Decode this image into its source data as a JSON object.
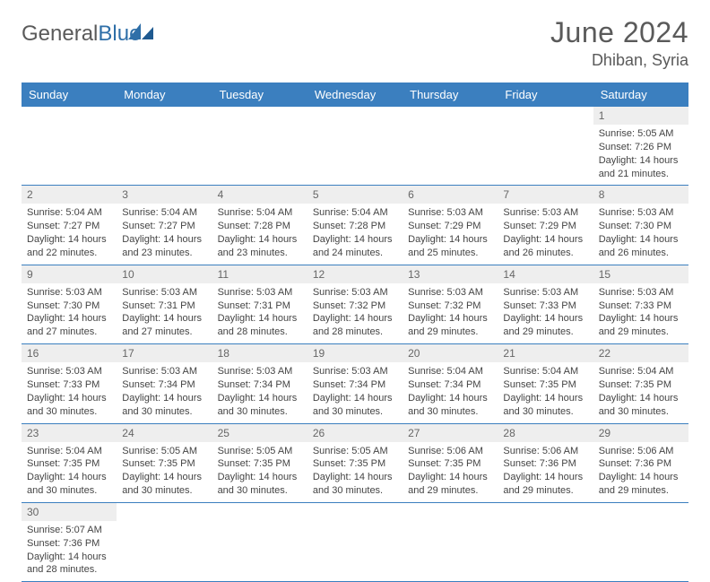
{
  "brand": {
    "part1": "General",
    "part2": "Blue"
  },
  "title": "June 2024",
  "location": "Dhiban, Syria",
  "colors": {
    "header_bg": "#3b7fbf",
    "header_text": "#ffffff",
    "daynum_bg": "#eeeeee",
    "daynum_text": "#666666",
    "cell_text": "#444444",
    "rule": "#3b7fbf",
    "title_text": "#5a5a5a",
    "brand_gray": "#5a5a5a",
    "brand_blue": "#2f6fa8"
  },
  "typography": {
    "title_fontsize": 32,
    "location_fontsize": 18,
    "dayhead_fontsize": 13,
    "daynum_fontsize": 12,
    "cell_fontsize": 11
  },
  "weekdays": [
    "Sunday",
    "Monday",
    "Tuesday",
    "Wednesday",
    "Thursday",
    "Friday",
    "Saturday"
  ],
  "weeks": [
    [
      null,
      null,
      null,
      null,
      null,
      null,
      {
        "n": "1",
        "sr": "Sunrise: 5:05 AM",
        "ss": "Sunset: 7:26 PM",
        "dl": "Daylight: 14 hours and 21 minutes."
      }
    ],
    [
      {
        "n": "2",
        "sr": "Sunrise: 5:04 AM",
        "ss": "Sunset: 7:27 PM",
        "dl": "Daylight: 14 hours and 22 minutes."
      },
      {
        "n": "3",
        "sr": "Sunrise: 5:04 AM",
        "ss": "Sunset: 7:27 PM",
        "dl": "Daylight: 14 hours and 23 minutes."
      },
      {
        "n": "4",
        "sr": "Sunrise: 5:04 AM",
        "ss": "Sunset: 7:28 PM",
        "dl": "Daylight: 14 hours and 23 minutes."
      },
      {
        "n": "5",
        "sr": "Sunrise: 5:04 AM",
        "ss": "Sunset: 7:28 PM",
        "dl": "Daylight: 14 hours and 24 minutes."
      },
      {
        "n": "6",
        "sr": "Sunrise: 5:03 AM",
        "ss": "Sunset: 7:29 PM",
        "dl": "Daylight: 14 hours and 25 minutes."
      },
      {
        "n": "7",
        "sr": "Sunrise: 5:03 AM",
        "ss": "Sunset: 7:29 PM",
        "dl": "Daylight: 14 hours and 26 minutes."
      },
      {
        "n": "8",
        "sr": "Sunrise: 5:03 AM",
        "ss": "Sunset: 7:30 PM",
        "dl": "Daylight: 14 hours and 26 minutes."
      }
    ],
    [
      {
        "n": "9",
        "sr": "Sunrise: 5:03 AM",
        "ss": "Sunset: 7:30 PM",
        "dl": "Daylight: 14 hours and 27 minutes."
      },
      {
        "n": "10",
        "sr": "Sunrise: 5:03 AM",
        "ss": "Sunset: 7:31 PM",
        "dl": "Daylight: 14 hours and 27 minutes."
      },
      {
        "n": "11",
        "sr": "Sunrise: 5:03 AM",
        "ss": "Sunset: 7:31 PM",
        "dl": "Daylight: 14 hours and 28 minutes."
      },
      {
        "n": "12",
        "sr": "Sunrise: 5:03 AM",
        "ss": "Sunset: 7:32 PM",
        "dl": "Daylight: 14 hours and 28 minutes."
      },
      {
        "n": "13",
        "sr": "Sunrise: 5:03 AM",
        "ss": "Sunset: 7:32 PM",
        "dl": "Daylight: 14 hours and 29 minutes."
      },
      {
        "n": "14",
        "sr": "Sunrise: 5:03 AM",
        "ss": "Sunset: 7:33 PM",
        "dl": "Daylight: 14 hours and 29 minutes."
      },
      {
        "n": "15",
        "sr": "Sunrise: 5:03 AM",
        "ss": "Sunset: 7:33 PM",
        "dl": "Daylight: 14 hours and 29 minutes."
      }
    ],
    [
      {
        "n": "16",
        "sr": "Sunrise: 5:03 AM",
        "ss": "Sunset: 7:33 PM",
        "dl": "Daylight: 14 hours and 30 minutes."
      },
      {
        "n": "17",
        "sr": "Sunrise: 5:03 AM",
        "ss": "Sunset: 7:34 PM",
        "dl": "Daylight: 14 hours and 30 minutes."
      },
      {
        "n": "18",
        "sr": "Sunrise: 5:03 AM",
        "ss": "Sunset: 7:34 PM",
        "dl": "Daylight: 14 hours and 30 minutes."
      },
      {
        "n": "19",
        "sr": "Sunrise: 5:03 AM",
        "ss": "Sunset: 7:34 PM",
        "dl": "Daylight: 14 hours and 30 minutes."
      },
      {
        "n": "20",
        "sr": "Sunrise: 5:04 AM",
        "ss": "Sunset: 7:34 PM",
        "dl": "Daylight: 14 hours and 30 minutes."
      },
      {
        "n": "21",
        "sr": "Sunrise: 5:04 AM",
        "ss": "Sunset: 7:35 PM",
        "dl": "Daylight: 14 hours and 30 minutes."
      },
      {
        "n": "22",
        "sr": "Sunrise: 5:04 AM",
        "ss": "Sunset: 7:35 PM",
        "dl": "Daylight: 14 hours and 30 minutes."
      }
    ],
    [
      {
        "n": "23",
        "sr": "Sunrise: 5:04 AM",
        "ss": "Sunset: 7:35 PM",
        "dl": "Daylight: 14 hours and 30 minutes."
      },
      {
        "n": "24",
        "sr": "Sunrise: 5:05 AM",
        "ss": "Sunset: 7:35 PM",
        "dl": "Daylight: 14 hours and 30 minutes."
      },
      {
        "n": "25",
        "sr": "Sunrise: 5:05 AM",
        "ss": "Sunset: 7:35 PM",
        "dl": "Daylight: 14 hours and 30 minutes."
      },
      {
        "n": "26",
        "sr": "Sunrise: 5:05 AM",
        "ss": "Sunset: 7:35 PM",
        "dl": "Daylight: 14 hours and 30 minutes."
      },
      {
        "n": "27",
        "sr": "Sunrise: 5:06 AM",
        "ss": "Sunset: 7:35 PM",
        "dl": "Daylight: 14 hours and 29 minutes."
      },
      {
        "n": "28",
        "sr": "Sunrise: 5:06 AM",
        "ss": "Sunset: 7:36 PM",
        "dl": "Daylight: 14 hours and 29 minutes."
      },
      {
        "n": "29",
        "sr": "Sunrise: 5:06 AM",
        "ss": "Sunset: 7:36 PM",
        "dl": "Daylight: 14 hours and 29 minutes."
      }
    ],
    [
      {
        "n": "30",
        "sr": "Sunrise: 5:07 AM",
        "ss": "Sunset: 7:36 PM",
        "dl": "Daylight: 14 hours and 28 minutes."
      },
      null,
      null,
      null,
      null,
      null,
      null
    ]
  ]
}
